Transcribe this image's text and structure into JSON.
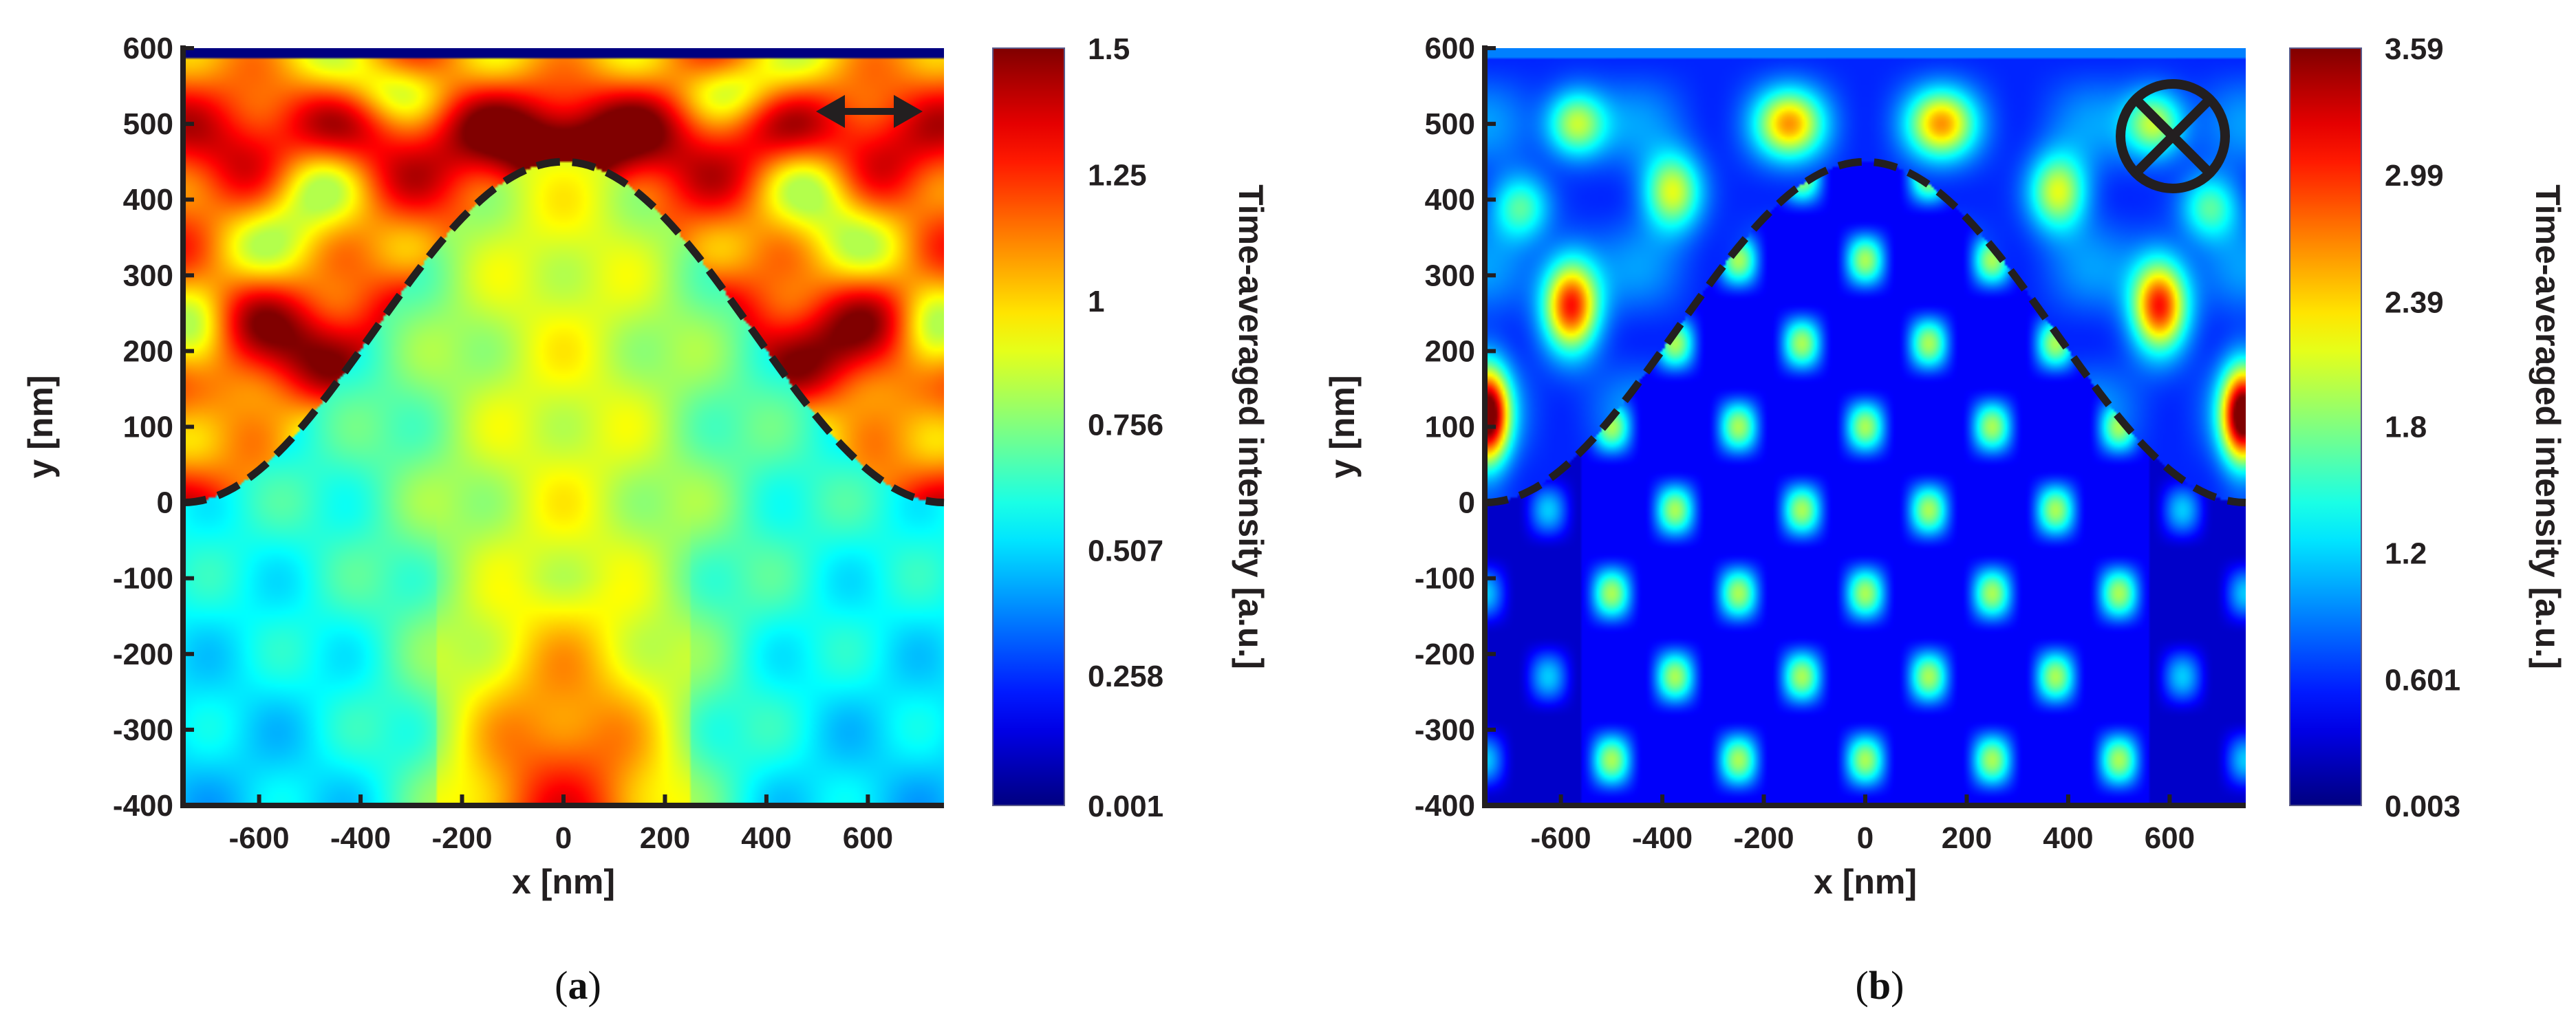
{
  "chart_data": [
    {
      "type": "heatmap",
      "panel": "(a)",
      "caption_open": "(",
      "caption_letter": "a",
      "caption_close": ")",
      "xlabel": "x [nm]",
      "ylabel": "y [nm]",
      "xlim": [
        -750,
        750
      ],
      "ylim": [
        -400,
        600
      ],
      "x_ticks": [
        "-600",
        "-400",
        "-200",
        "0",
        "200",
        "400",
        "600"
      ],
      "x_tick_values": [
        -600,
        -400,
        -200,
        0,
        200,
        400,
        600
      ],
      "y_ticks": [
        "600",
        "500",
        "400",
        "300",
        "200",
        "100",
        "0",
        "-100",
        "-200",
        "-300",
        "-400"
      ],
      "y_tick_values": [
        600,
        500,
        400,
        300,
        200,
        100,
        0,
        -100,
        -200,
        -300,
        -400
      ],
      "colorbar_label": "Time-averaged intensity [a.u.]",
      "colorbar_ticks": [
        "1.5",
        "1.25",
        "1",
        "0.756",
        "0.507",
        "0.258",
        "0.001"
      ],
      "colorbar_tick_values": [
        1.5,
        1.25,
        1.0,
        0.756,
        0.507,
        0.258,
        0.001
      ],
      "colormap": "jet",
      "clim": [
        0.001,
        1.5
      ],
      "polarization": "in-plane (double arrow)",
      "profile": {
        "style": "dashed",
        "description": "cosine grating surface",
        "peak_y": 450,
        "edge_y": 0
      },
      "field_summary": {
        "above_surface": "standing wave pattern, intensity ~1.1 to 1.5",
        "below_surface": "intensity ~0.6, rising to ~1.3 near x=0, y=-400"
      }
    },
    {
      "type": "heatmap",
      "panel": "(b)",
      "caption_open": "(",
      "caption_letter": "b",
      "caption_close": ")",
      "xlabel": "x [nm]",
      "ylabel": "y [nm]",
      "xlim": [
        -750,
        750
      ],
      "ylim": [
        -400,
        600
      ],
      "x_ticks": [
        "-600",
        "-400",
        "-200",
        "0",
        "200",
        "400",
        "600"
      ],
      "x_tick_values": [
        -600,
        -400,
        -200,
        0,
        200,
        400,
        600
      ],
      "y_ticks": [
        "600",
        "500",
        "400",
        "300",
        "200",
        "100",
        "0",
        "-100",
        "-200",
        "-300",
        "-400"
      ],
      "y_tick_values": [
        600,
        500,
        400,
        300,
        200,
        100,
        0,
        -100,
        -200,
        -300,
        -400
      ],
      "colorbar_label": "Time-averaged intensity [a.u.]",
      "colorbar_ticks": [
        "3.59",
        "2.99",
        "2.39",
        "1.8",
        "1.2",
        "0.601",
        "0.003"
      ],
      "colorbar_tick_values": [
        3.59,
        2.99,
        2.39,
        1.8,
        1.2,
        0.601,
        0.003
      ],
      "colormap": "jet",
      "clim": [
        0.003,
        3.59
      ],
      "polarization": "out-of-plane (circled cross)",
      "profile": {
        "style": "dashed",
        "description": "cosine grating surface",
        "peak_y": 450,
        "edge_y": 0
      },
      "field_summary": {
        "above_surface": "bright lobes ~2.8 at (+/-580, 260) and ~3.4 at (+/-740, 110)",
        "below_surface": "lattice of spots ~1.0 to 1.5 on dark background ~0.3"
      }
    }
  ]
}
